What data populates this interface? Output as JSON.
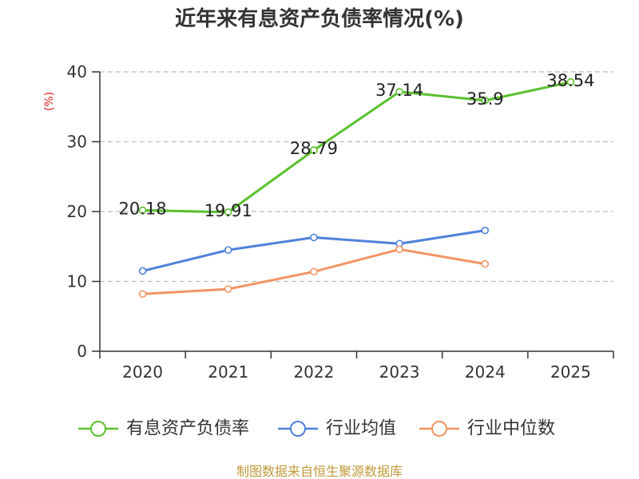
{
  "chart_data": {
    "type": "line",
    "title": "近年来有息资产负债率情况(%)",
    "xlabel": "",
    "ylabel": "(%)",
    "categories": [
      "2020",
      "2021",
      "2022",
      "2023",
      "2024",
      "2025"
    ],
    "ylim": [
      0,
      40
    ],
    "yticks": [
      0,
      10,
      20,
      30,
      40
    ],
    "grid": true,
    "legend": "bottom",
    "series": [
      {
        "name": "有息资产负债率",
        "color": "#5ac02e",
        "show_labels": true,
        "values": [
          20.18,
          19.91,
          28.79,
          37.14,
          35.9,
          38.54
        ]
      },
      {
        "name": "行业均值",
        "color": "#4f81d9",
        "show_labels": false,
        "values": [
          11.5,
          14.5,
          16.3,
          15.4,
          17.3,
          null
        ]
      },
      {
        "name": "行业中位数",
        "color": "#f39463",
        "show_labels": false,
        "values": [
          8.2,
          8.9,
          11.4,
          14.6,
          12.5,
          null
        ]
      }
    ]
  },
  "footer": "制图数据来自恒生聚源数据库",
  "colors": {
    "axis": "#333333",
    "grid": "#bbbbbb",
    "ylabel": "#e02020",
    "footer": "#c09a3a"
  }
}
